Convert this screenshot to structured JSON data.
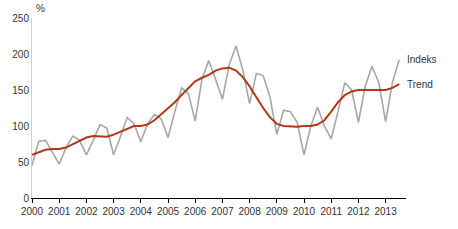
{
  "chart_data": {
    "type": "line",
    "ylabel": "%",
    "x": [
      2000,
      2000.25,
      2000.5,
      2000.75,
      2001,
      2001.25,
      2001.5,
      2001.75,
      2002,
      2002.25,
      2002.5,
      2002.75,
      2003,
      2003.25,
      2003.5,
      2003.75,
      2004,
      2004.25,
      2004.5,
      2004.75,
      2005,
      2005.25,
      2005.5,
      2005.75,
      2006,
      2006.25,
      2006.5,
      2006.75,
      2007,
      2007.25,
      2007.5,
      2007.75,
      2008,
      2008.25,
      2008.5,
      2008.75,
      2009,
      2009.25,
      2009.5,
      2009.75,
      2010,
      2010.25,
      2010.5,
      2010.75,
      2011,
      2011.25,
      2011.5,
      2011.75,
      2012,
      2012.25,
      2012.5,
      2012.75,
      2013,
      2013.25,
      2013.5
    ],
    "series": [
      {
        "name": "Indeks",
        "color": "#a6a6a6",
        "values": [
          45,
          79,
          80,
          63,
          47,
          70,
          86,
          80,
          60,
          80,
          102,
          97,
          60,
          85,
          112,
          103,
          78,
          103,
          116,
          110,
          84,
          120,
          153,
          145,
          107,
          165,
          191,
          165,
          137,
          185,
          211,
          178,
          131,
          173,
          170,
          140,
          88,
          122,
          120,
          105,
          60,
          100,
          126,
          100,
          82,
          120,
          160,
          150,
          105,
          155,
          183,
          160,
          106,
          160,
          192
        ]
      },
      {
        "name": "Trend",
        "color": "#b2371f",
        "values": [
          60,
          64,
          67,
          68,
          68,
          70,
          75,
          80,
          84,
          86,
          85,
          85,
          88,
          92,
          97,
          100,
          100,
          102,
          108,
          116,
          124,
          133,
          143,
          152,
          162,
          167,
          171,
          177,
          180,
          181,
          177,
          168,
          155,
          140,
          125,
          112,
          103,
          100,
          99,
          99,
          100,
          100,
          102,
          108,
          120,
          133,
          143,
          148,
          150,
          150,
          149,
          149,
          150,
          153,
          158
        ]
      }
    ],
    "xlim": [
      2000,
      2013.75
    ],
    "xticks": [
      2000,
      2001,
      2002,
      2003,
      2004,
      2005,
      2006,
      2007,
      2008,
      2009,
      2010,
      2011,
      2012,
      2013
    ],
    "ylim": [
      0,
      250
    ],
    "yticks": [
      0,
      50,
      100,
      150,
      200,
      250
    ],
    "grid": false
  }
}
